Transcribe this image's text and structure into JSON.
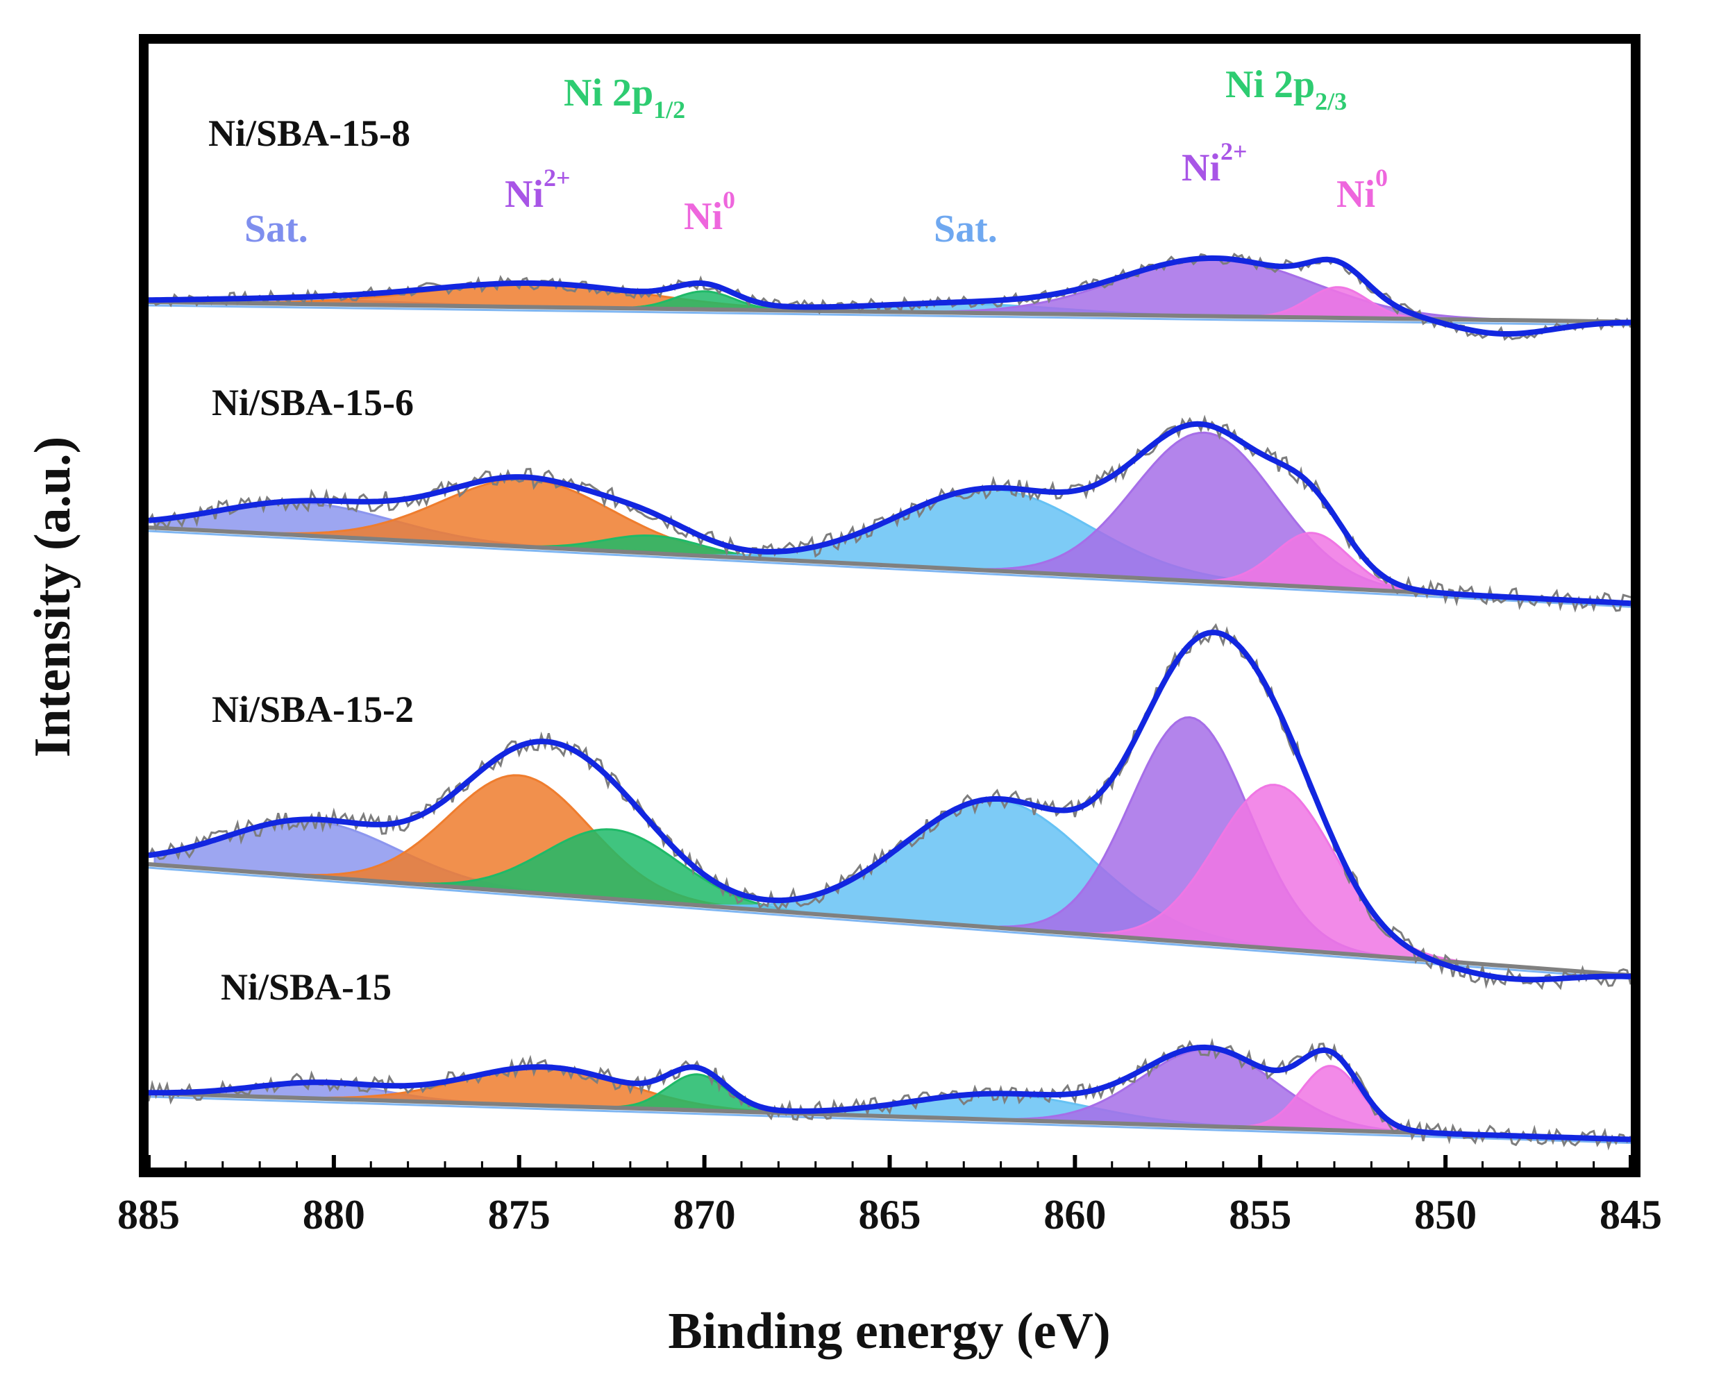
{
  "chart_data": {
    "type": "line",
    "title": "",
    "xlabel": "Binding energy (eV)",
    "ylabel": "Intensity (a.u.)",
    "xlim": [
      885,
      845
    ],
    "x_reversed": true,
    "x_ticks": [
      885,
      880,
      875,
      870,
      865,
      860,
      855,
      850,
      845
    ],
    "x_tick_labels": [
      "885",
      "880",
      "875",
      "870",
      "865",
      "860",
      "855",
      "850",
      "845"
    ],
    "grid": false,
    "legend": "none",
    "colors": {
      "envelope": "#1226e0",
      "raw": "#7d7d7d",
      "background": "#808080",
      "sat": "#8c96ee",
      "ni2_2p12": "#ef7d2e",
      "ni0_2p12": "#1fba68",
      "sat_2p32": "#66c2f4",
      "ni2_2p32": "#a66ee8",
      "ni0_2p32": "#f076e4"
    },
    "annotations": [
      {
        "id": "ni-2p12",
        "text": "Ni 2p",
        "sub": "1/2",
        "color": "#2ecc71"
      },
      {
        "id": "ni-2p23",
        "text": "Ni 2p",
        "sub": "2/3",
        "color": "#2ecc71"
      },
      {
        "id": "ni2-a",
        "text": "Ni",
        "sup": "2+",
        "color": "#a855e6"
      },
      {
        "id": "ni0-a",
        "text": "Ni",
        "sup": "0",
        "color": "#ee66dd"
      },
      {
        "id": "sat-a",
        "text": "Sat.",
        "color": "#7f8fee"
      },
      {
        "id": "sat-b",
        "text": "Sat.",
        "color": "#6fa8f0"
      },
      {
        "id": "ni2-b",
        "text": "Ni",
        "sup": "2+",
        "color": "#a855e6"
      },
      {
        "id": "ni0-b",
        "text": "Ni",
        "sup": "0",
        "color": "#ee66dd"
      }
    ],
    "series": [
      {
        "name": "Ni/SBA-15-8",
        "baseline_left": 0.0,
        "baseline_right": -0.22,
        "tail_dip": {
          "center": 848.5,
          "depth": 0.16,
          "width": 1.4
        },
        "peaks": [
          {
            "label": "Sat.",
            "color_key": "sat",
            "center": 881.0,
            "height": 0.05,
            "width": 3.0
          },
          {
            "label": "Ni2+ 2p1/2",
            "color_key": "ni2_2p12",
            "center": 874.5,
            "height": 0.26,
            "width": 3.0
          },
          {
            "label": "Ni0 2p1/2",
            "color_key": "ni0_2p12",
            "center": 870.0,
            "height": 0.2,
            "width": 0.8
          },
          {
            "label": "Sat.",
            "color_key": "sat_2p32",
            "center": 863.0,
            "height": 0.1,
            "width": 2.6
          },
          {
            "label": "Ni2+ 2p3/2",
            "color_key": "ni2_2p32",
            "center": 856.2,
            "height": 0.64,
            "width": 2.6
          },
          {
            "label": "Ni0 2p3/2",
            "color_key": "ni0_2p32",
            "center": 852.9,
            "height": 0.34,
            "width": 0.8
          }
        ]
      },
      {
        "name": "Ni/SBA-15-6",
        "baseline_left": 0.0,
        "baseline_right": -0.56,
        "tail_dip": {
          "center": 849.0,
          "depth": 0.0,
          "width": 1.0
        },
        "peaks": [
          {
            "label": "Sat.",
            "color_key": "sat",
            "center": 880.8,
            "height": 0.24,
            "width": 2.4
          },
          {
            "label": "Ni2+ 2p1/2",
            "color_key": "ni2_2p12",
            "center": 874.8,
            "height": 0.5,
            "width": 2.3
          },
          {
            "label": "Ni0 2p1/2",
            "color_key": "ni0_2p12",
            "center": 871.4,
            "height": 0.13,
            "width": 1.3
          },
          {
            "label": "Sat.",
            "color_key": "sat_2p32",
            "center": 862.2,
            "height": 0.6,
            "width": 2.6
          },
          {
            "label": "Ni2+ 2p3/2",
            "color_key": "ni2_2p32",
            "center": 856.5,
            "height": 1.1,
            "width": 1.9
          },
          {
            "label": "Ni0 2p3/2",
            "color_key": "ni0_2p32",
            "center": 853.6,
            "height": 0.4,
            "width": 1.0
          }
        ]
      },
      {
        "name": "Ni/SBA-15-2",
        "baseline_left": 0.0,
        "baseline_right": -0.8,
        "tail_dip": {
          "center": 848.2,
          "depth": 0.09,
          "width": 1.5
        },
        "peaks": [
          {
            "label": "Sat.",
            "color_key": "sat",
            "center": 880.6,
            "height": 0.4,
            "width": 2.3
          },
          {
            "label": "Ni2+ 2p1/2",
            "color_key": "ni2_2p12",
            "center": 875.0,
            "height": 0.84,
            "width": 1.9
          },
          {
            "label": "Ni0 2p1/2",
            "color_key": "ni0_2p12",
            "center": 872.5,
            "height": 0.5,
            "width": 1.8
          },
          {
            "label": "Sat.",
            "color_key": "sat_2p32",
            "center": 862.1,
            "height": 0.92,
            "width": 2.5
          },
          {
            "label": "Ni2+ 2p3/2",
            "color_key": "ni2_2p32",
            "center": 856.9,
            "height": 1.62,
            "width": 1.6
          },
          {
            "label": "Ni0 2p3/2",
            "color_key": "ni0_2p32",
            "center": 854.6,
            "height": 1.18,
            "width": 1.6
          }
        ]
      },
      {
        "name": "Ni/SBA-15",
        "baseline_left": 0.0,
        "baseline_right": -0.36,
        "tail_dip": {
          "center": 849.0,
          "depth": 0.0,
          "width": 1.0
        },
        "peaks": [
          {
            "label": "Sat.",
            "color_key": "sat",
            "center": 880.4,
            "height": 0.12,
            "width": 1.8
          },
          {
            "label": "Ni2+ 2p1/2",
            "color_key": "ni2_2p12",
            "center": 874.3,
            "height": 0.3,
            "width": 2.2
          },
          {
            "label": "Ni0 2p1/2",
            "color_key": "ni0_2p12",
            "center": 870.2,
            "height": 0.28,
            "width": 0.8
          },
          {
            "label": "Sat.",
            "color_key": "sat_2p32",
            "center": 862.0,
            "height": 0.2,
            "width": 2.4
          },
          {
            "label": "Ni2+ 2p3/2",
            "color_key": "ni2_2p32",
            "center": 856.4,
            "height": 0.6,
            "width": 1.8
          },
          {
            "label": "Ni0 2p3/2",
            "color_key": "ni0_2p32",
            "center": 853.1,
            "height": 0.5,
            "width": 0.8
          }
        ]
      }
    ]
  }
}
